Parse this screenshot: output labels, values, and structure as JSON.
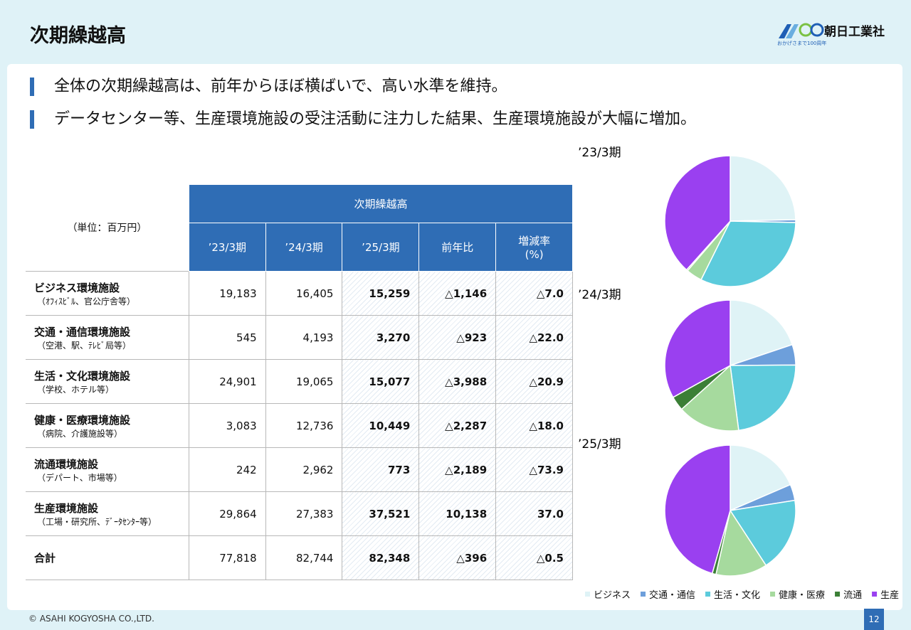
{
  "header": {
    "title": "次期繰越高",
    "company": "朝日工業社",
    "tagline": "おかげさまで100周年"
  },
  "bullets": [
    "全体の次期繰越高は、前年からほぼ横ばいで、高い水準を維持。",
    "データセンター等、生産環境施設の受注活動に注力した結果、生産環境施設が大幅に増加。"
  ],
  "table": {
    "unit": "（単位：百万円）",
    "group_header": "次期繰越高",
    "columns": [
      "’23/3期",
      "’24/3期",
      "’25/3期",
      "前年比",
      "増減率\n(%)"
    ],
    "rows": [
      {
        "label": "ビジネス環境施設",
        "note": "（ｵﾌｨｽﾋﾞﾙ、官公庁舎等）",
        "cells": [
          "19,183",
          "16,405",
          "15,259",
          "△1,146",
          "△7.0"
        ]
      },
      {
        "label": "交通・通信環境施設",
        "note": "（空港、駅、ﾃﾚﾋﾞ局等）",
        "cells": [
          "545",
          "4,193",
          "3,270",
          "△923",
          "△22.0"
        ]
      },
      {
        "label": "生活・文化環境施設",
        "note": "（学校、ホテル等）",
        "cells": [
          "24,901",
          "19,065",
          "15,077",
          "△3,988",
          "△20.9"
        ]
      },
      {
        "label": "健康・医療環境施設",
        "note": "（病院、介護施設等）",
        "cells": [
          "3,083",
          "12,736",
          "10,449",
          "△2,287",
          "△18.0"
        ]
      },
      {
        "label": "流通環境施設",
        "note": "（デパート、市場等）",
        "cells": [
          "242",
          "2,962",
          "773",
          "△2,189",
          "△73.9"
        ]
      },
      {
        "label": "生産環境施設",
        "note": "（工場・研究所、ﾃﾞｰﾀｾﾝﾀｰ等）",
        "cells": [
          "29,864",
          "27,383",
          "37,521",
          "10,138",
          "37.0"
        ]
      },
      {
        "label": "合計",
        "cells": [
          "77,818",
          "82,744",
          "82,348",
          "△396",
          "△0.5"
        ]
      }
    ]
  },
  "pies": [
    {
      "label": "’23/3期",
      "values": [
        19183,
        545,
        24901,
        3083,
        242,
        29864
      ]
    },
    {
      "label": "’24/3期",
      "values": [
        16405,
        4193,
        19065,
        12736,
        2962,
        27383
      ]
    },
    {
      "label": "’25/3期",
      "values": [
        15259,
        3270,
        15077,
        10449,
        773,
        37521
      ]
    }
  ],
  "legend": [
    {
      "name": "ビジネス",
      "color": "#dff3f6"
    },
    {
      "name": "交通・通信",
      "color": "#6d9fdb"
    },
    {
      "name": "生活・文化",
      "color": "#5ccbdc"
    },
    {
      "name": "健康・医療",
      "color": "#a6da9e"
    },
    {
      "name": "流通",
      "color": "#3b7f36"
    },
    {
      "name": "生産",
      "color": "#9a40f0"
    }
  ],
  "footer": {
    "copyright": "© ASAHI KOGYOSHA CO.,LTD.",
    "page": "12"
  }
}
